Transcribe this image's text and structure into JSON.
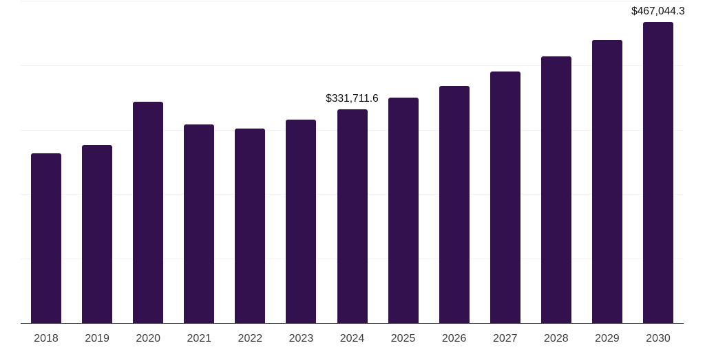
{
  "chart_data": {
    "type": "bar",
    "title": "",
    "xlabel": "",
    "ylabel": "",
    "categories": [
      "2018",
      "2019",
      "2020",
      "2021",
      "2022",
      "2023",
      "2024",
      "2025",
      "2026",
      "2027",
      "2028",
      "2029",
      "2030"
    ],
    "values": [
      263000,
      276100,
      343800,
      308100,
      302200,
      316100,
      331711.6,
      349700,
      368300,
      390700,
      413600,
      439200,
      467044.3
    ],
    "data_labels": {
      "2024": "$331,711.6",
      "2030": "$467,044.3"
    },
    "ylim": [
      0,
      500000
    ],
    "grid": "horizontal",
    "gridline_step": 100000,
    "legend": "none",
    "colors": {
      "bar": "#33114e",
      "gridline": "#f2f2f2",
      "axis": "#4d4d4d",
      "tick_label": "#3d3d3d",
      "value_label": "#0f0f0f",
      "background": "#ffffff"
    }
  }
}
